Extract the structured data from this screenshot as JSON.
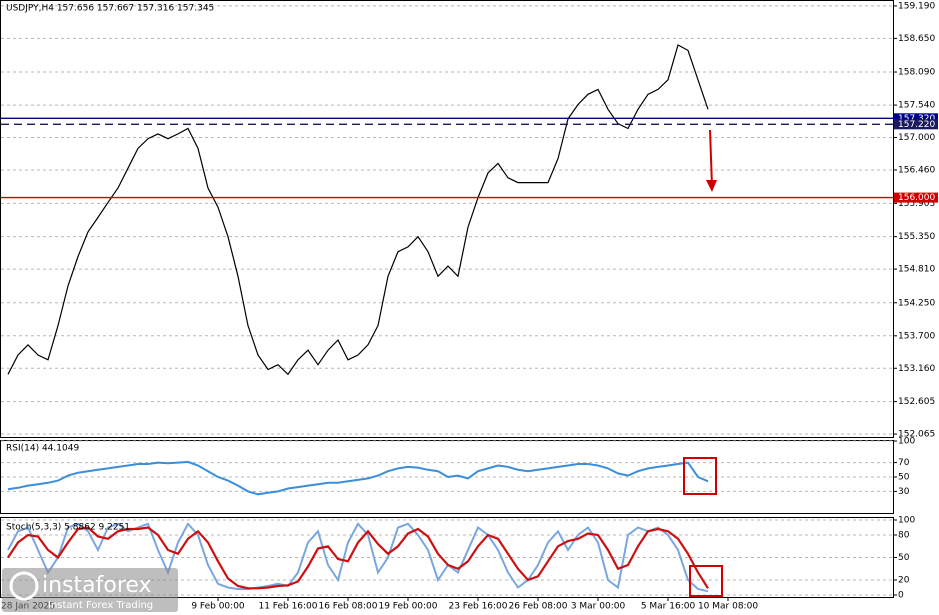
{
  "chart_data": [
    {
      "type": "line",
      "title": "USDJPY,H4 157.656 157.667 157.316 157.345",
      "categories": [
        null,
        null,
        "28 Jan 2025",
        null,
        null,
        null,
        null,
        null,
        null,
        null,
        null,
        null,
        null,
        null,
        null,
        null,
        null,
        null,
        null,
        null,
        null,
        "9 Feb 00:00",
        null,
        null,
        null,
        null,
        null,
        null,
        "11 Feb 16:00",
        null,
        null,
        null,
        null,
        null,
        "16 Feb 08:00",
        null,
        null,
        null,
        null,
        null,
        "19 Feb 00:00",
        null,
        null,
        null,
        null,
        null,
        null,
        "23 Feb 16:00",
        null,
        null,
        null,
        null,
        null,
        "26 Feb 08:00",
        null,
        null,
        null,
        null,
        null,
        "3 Mar 00:00",
        null,
        null,
        null,
        null,
        null,
        null,
        "5 Mar 16:00",
        null,
        null,
        null,
        null,
        null,
        "10 Mar 08:00",
        null,
        null,
        null,
        null,
        null,
        null,
        null,
        null,
        null,
        null,
        null,
        null,
        null,
        null,
        null
      ],
      "values": [
        153.06,
        153.38,
        153.55,
        153.38,
        153.3,
        153.87,
        154.53,
        155.02,
        155.43,
        155.67,
        155.92,
        156.16,
        156.49,
        156.82,
        156.98,
        157.06,
        156.98,
        157.06,
        157.15,
        156.82,
        156.16,
        155.84,
        155.35,
        154.69,
        153.87,
        153.38,
        153.14,
        153.22,
        153.06,
        153.3,
        153.46,
        153.22,
        153.46,
        153.63,
        153.3,
        153.38,
        153.55,
        153.87,
        154.69,
        155.1,
        155.18,
        155.35,
        155.1,
        154.69,
        154.86,
        154.69,
        155.51,
        156.0,
        156.41,
        156.57,
        156.33,
        156.25,
        156.25,
        156.25,
        156.25,
        156.65,
        157.31,
        157.55,
        157.72,
        157.8,
        157.47,
        157.23,
        157.15,
        157.47,
        157.72,
        157.8,
        157.96,
        158.54,
        158.45,
        157.96,
        157.47,
        null,
        null,
        null,
        null,
        null,
        null,
        null,
        null,
        null,
        null,
        null,
        null,
        null,
        null,
        null,
        null,
        null
      ],
      "color": "#000000",
      "ylim": [
        152.016,
        159.272
      ],
      "yticks": [
        {
          "value": 159.19,
          "label": "159.190"
        },
        {
          "value": 158.65,
          "label": "158.650"
        },
        {
          "value": 158.09,
          "label": "158.090"
        },
        {
          "value": 157.54,
          "label": "157.540"
        },
        {
          "value": 157,
          "label": "157.000"
        },
        {
          "value": 156.46,
          "label": "156.460"
        },
        {
          "value": 155.905,
          "label": "155.905"
        },
        {
          "value": 155.35,
          "label": "155.350"
        },
        {
          "value": 154.81,
          "label": "154.810"
        },
        {
          "value": 154.25,
          "label": "154.250"
        },
        {
          "value": 153.7,
          "label": "153.700"
        },
        {
          "value": 153.16,
          "label": "153.160"
        },
        {
          "value": 152.605,
          "label": "152.605"
        },
        {
          "value": 152.065,
          "label": "152.065"
        }
      ],
      "levels": [
        {
          "value": 157.32,
          "label": "157.320",
          "color": "#00008b",
          "dashed": false
        },
        {
          "value": 157.22,
          "label": "157.220",
          "color": "#1a1a60",
          "dashed": true
        },
        {
          "value": 156,
          "label": "156.000",
          "color": "#d00000",
          "dashed": false
        }
      ],
      "grid": true
    },
    {
      "type": "line",
      "title": "RSI(14) 44.1049",
      "values": [
        33,
        35,
        38,
        40,
        42,
        45,
        52,
        56,
        58,
        60,
        62,
        64,
        66,
        68,
        68,
        70,
        69,
        70,
        71,
        66,
        58,
        50,
        45,
        38,
        30,
        26,
        28,
        30,
        34,
        36,
        38,
        40,
        42,
        42,
        44,
        46,
        48,
        52,
        58,
        62,
        64,
        63,
        60,
        58,
        50,
        52,
        48,
        58,
        62,
        66,
        64,
        60,
        58,
        60,
        62,
        64,
        66,
        68,
        68,
        66,
        62,
        55,
        52,
        58,
        62,
        64,
        66,
        68,
        70,
        50,
        44
      ],
      "color": "#3a8fd8",
      "ylim": [
        0,
        100
      ],
      "yticks": [
        100,
        70,
        50,
        30
      ],
      "grid": true
    },
    {
      "type": "line",
      "title": "Stoch(5,3,3) 5.8862 9.2251",
      "series": [
        {
          "color": "#7aa6e0",
          "values": [
            60,
            85,
            90,
            60,
            30,
            50,
            90,
            95,
            85,
            60,
            90,
            95,
            85,
            90,
            95,
            60,
            30,
            70,
            95,
            80,
            40,
            15,
            10,
            8,
            8,
            10,
            12,
            15,
            12,
            30,
            70,
            85,
            40,
            20,
            70,
            95,
            80,
            30,
            50,
            90,
            95,
            80,
            60,
            20,
            40,
            30,
            60,
            90,
            80,
            60,
            30,
            10,
            20,
            40,
            70,
            85,
            60,
            80,
            90,
            70,
            20,
            10,
            80,
            90,
            85,
            90,
            80,
            60,
            20,
            8,
            5
          ]
        },
        {
          "color": "#cc1010",
          "values": [
            50,
            70,
            80,
            78,
            60,
            50,
            70,
            88,
            90,
            78,
            75,
            85,
            88,
            88,
            90,
            80,
            60,
            55,
            75,
            85,
            70,
            45,
            22,
            12,
            9,
            9,
            10,
            12,
            13,
            18,
            38,
            62,
            65,
            48,
            45,
            70,
            85,
            68,
            55,
            65,
            82,
            88,
            78,
            55,
            40,
            35,
            45,
            65,
            80,
            75,
            55,
            35,
            20,
            25,
            45,
            65,
            72,
            75,
            82,
            80,
            60,
            35,
            40,
            65,
            85,
            88,
            85,
            75,
            55,
            30,
            9
          ]
        }
      ],
      "ylim": [
        0,
        100
      ],
      "yticks": [
        100,
        80,
        50,
        20,
        0
      ],
      "grid": true
    }
  ],
  "branding": {
    "name": "instaforex",
    "tagline": "Instant Forex Trading"
  }
}
